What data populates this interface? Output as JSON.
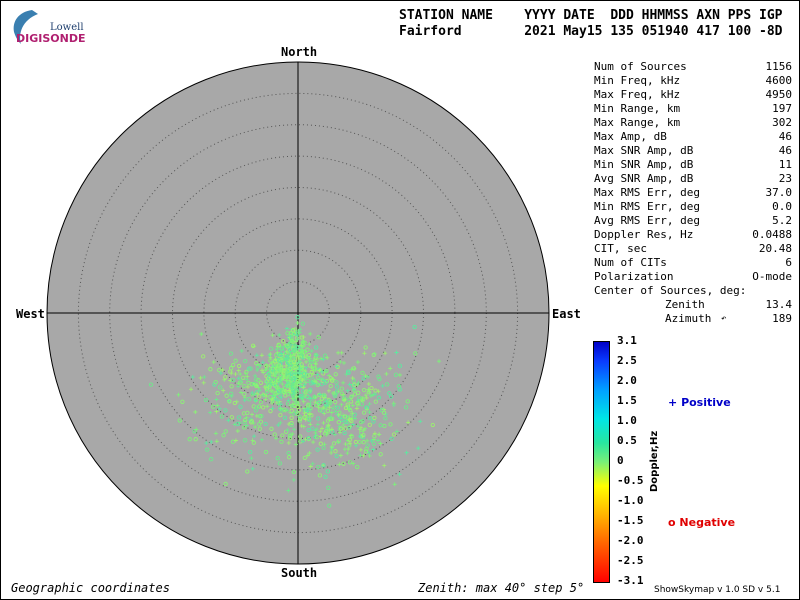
{
  "logo": {
    "line1": "Lowell",
    "line2": "DIGISONDE"
  },
  "header": {
    "labels": "STATION NAME    YYYY DATE  DDD HHMMSS AXN PPS IGP",
    "values": "Fairford        2021 May15 135 051940 417 100 -8D"
  },
  "directions": {
    "north": "North",
    "south": "South",
    "west": "West",
    "east": "East"
  },
  "stats": [
    {
      "label": "Num of Sources",
      "value": "1156"
    },
    {
      "label": "Min Freq, kHz",
      "value": "4600"
    },
    {
      "label": "Max Freq, kHz",
      "value": "4950"
    },
    {
      "label": "Min Range, km",
      "value": "197"
    },
    {
      "label": "Max Range, km",
      "value": "302"
    },
    {
      "label": "Max Amp, dB",
      "value": "46"
    },
    {
      "label": "Max SNR Amp, dB",
      "value": "46"
    },
    {
      "label": "Min SNR Amp, dB",
      "value": "11"
    },
    {
      "label": "Avg SNR Amp, dB",
      "value": "23"
    },
    {
      "label": "Max RMS Err, deg",
      "value": "37.0"
    },
    {
      "label": "Min RMS Err, deg",
      "value": "0.0"
    },
    {
      "label": "Avg RMS Err, deg",
      "value": "5.2"
    },
    {
      "label": "Doppler Res, Hz",
      "value": "0.0488"
    },
    {
      "label": "CIT, sec",
      "value": "20.48"
    },
    {
      "label": "Num of CITs",
      "value": "6"
    },
    {
      "label": "Polarization",
      "value": "O-mode"
    }
  ],
  "center": {
    "title": "Center of Sources, deg:",
    "zenith_label": "Zenith",
    "zenith_value": "13.4",
    "azimuth_label": "Azimuth",
    "azimuth_value": "189"
  },
  "colorbar": {
    "ticks": [
      "3.1",
      "2.5",
      "2.0",
      "1.5",
      "1.0",
      "0.5",
      "0",
      "-0.5",
      "-1.0",
      "-1.5",
      "-2.0",
      "-2.5",
      "-3.1"
    ],
    "label": "Doppler,Hz"
  },
  "legend": {
    "positive_symbol": "+",
    "positive_label": "Positive",
    "positive_color": "#0000c8",
    "negative_symbol": "o",
    "negative_label": "Negative",
    "negative_color": "#e00000"
  },
  "footer": {
    "left": "Geographic coordinates",
    "middle": "Zenith: max 40°  step 5°",
    "right": "ShowSkymap v 1.0   SD v 5.1"
  },
  "chart_data": {
    "type": "scatter",
    "coordinate_system": "polar skymap (zenith angle vs azimuth)",
    "zenith_max_deg": 40,
    "zenith_step_deg": 5,
    "num_sources": 1156,
    "center_zenith_deg": 13.4,
    "center_azimuth_deg": 189,
    "clusters": [
      {
        "azimuth_deg": 187,
        "zenith_deg": 10,
        "share": 0.5
      },
      {
        "azimuth_deg": 157,
        "zenith_deg": 18,
        "share": 0.35
      },
      {
        "azimuth_deg": 212,
        "zenith_deg": 17,
        "share": 0.15
      }
    ],
    "doppler_range_hz": [
      -3.1,
      3.1
    ],
    "doppler_typical_hz": [
      0.0,
      0.5
    ],
    "grid": true
  }
}
